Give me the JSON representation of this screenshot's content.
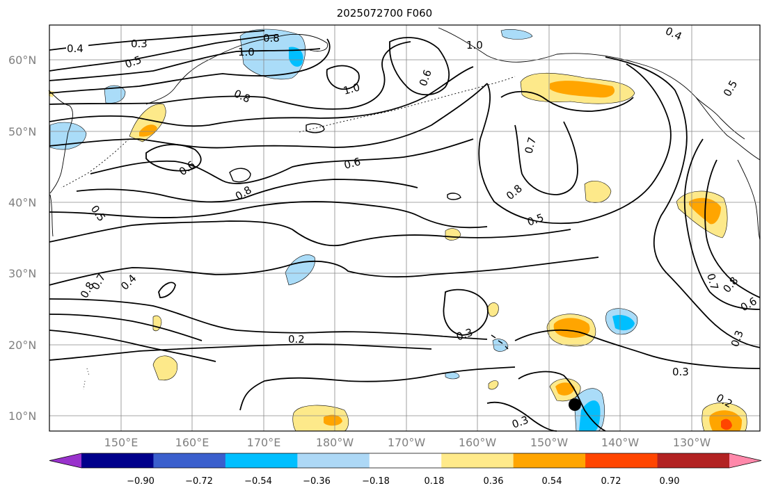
{
  "title": "2025072700 F060",
  "map": {
    "lat_labels": [
      "60°N",
      "50°N",
      "40°N",
      "30°N",
      "20°N",
      "10°N"
    ],
    "lon_labels": [
      "150°E",
      "160°E",
      "170°E",
      "180°W",
      "170°W",
      "160°W",
      "150°W",
      "140°W",
      "130°W"
    ],
    "contour_labels": [
      "0.4",
      "0.3",
      "0.5",
      "0.8",
      "1.0",
      "1.0",
      "1.0",
      "0.6",
      "0.8",
      "0.6",
      "0.8",
      "0.6",
      "0.5",
      "0.7",
      "0.8",
      "0.5",
      "0.4",
      "0.7",
      "0.8",
      "0.3",
      "0.2",
      "0.3",
      "0.3",
      "0.7",
      "0.8",
      "0.6",
      "0.3",
      "0.2",
      "0.5",
      "0.4"
    ],
    "colors": {
      "contour": "#000000",
      "grid": "#888888",
      "pos_light": "#fde98a",
      "pos_mid": "#ffa500",
      "pos_strong": "#ff4500",
      "neg_light": "#aadcf8",
      "neg_mid": "#00bfff"
    }
  },
  "colorbar": {
    "tick_labels": [
      "−0.90",
      "−0.72",
      "−0.54",
      "−0.36",
      "−0.18",
      "0.18",
      "0.36",
      "0.54",
      "0.72",
      "0.90"
    ],
    "colors": [
      "#9932cc",
      "#00008b",
      "#3a5fcd",
      "#00bfff",
      "#add8f6",
      "#ffffff",
      "#ffea8a",
      "#ffa500",
      "#ff4500",
      "#b22222",
      "#ff88aa"
    ]
  }
}
